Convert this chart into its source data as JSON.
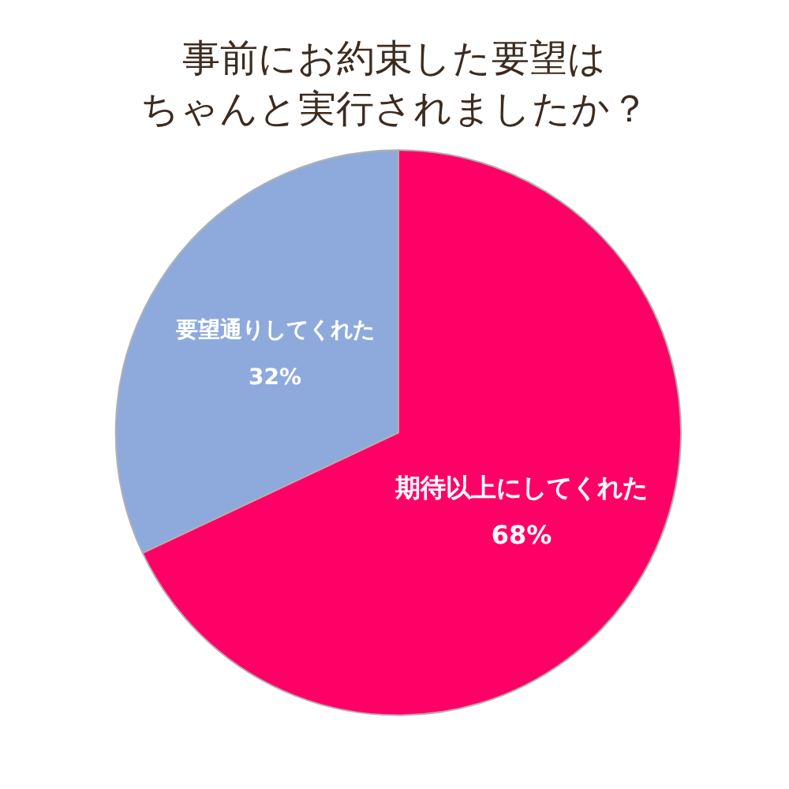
{
  "chart_data": {
    "type": "pie",
    "title": "事前にお約束した要望は",
    "subtitle": "ちゃんと実行されましたか？",
    "categories": [
      "期待以上にしてくれた",
      "要望通りしてくれた"
    ],
    "values": [
      68,
      32
    ],
    "colors": [
      "#ff0066",
      "#8eaadc"
    ],
    "value_labels": [
      "68%",
      "32%"
    ],
    "legend": false
  }
}
